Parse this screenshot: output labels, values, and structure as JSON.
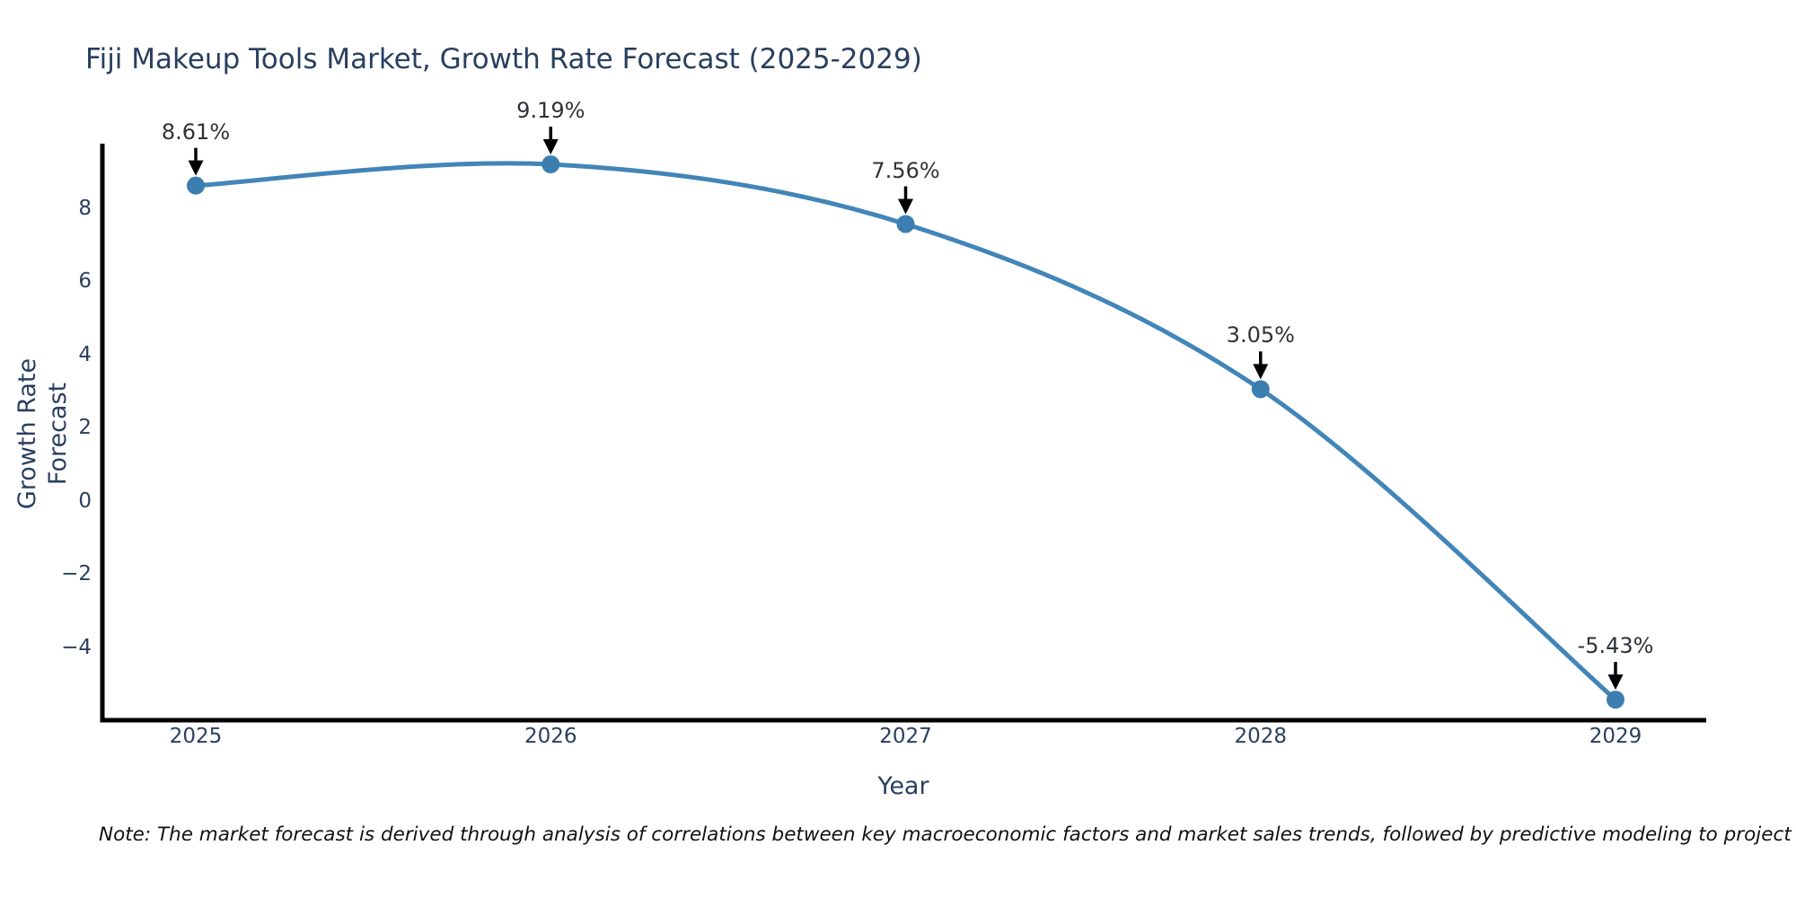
{
  "page": {
    "note": "Note: The market forecast is derived through analysis of correlations between key macroeconomic factors and market sales trends, followed by predictive modeling to project future sales"
  },
  "chart_data": {
    "type": "line",
    "title": "Fiji Makeup Tools Market, Growth Rate Forecast (2025-2029)",
    "xlabel": "Year",
    "ylabel": "Growth Rate Forecast",
    "line_shape": "spline",
    "grid": false,
    "legend_position": "none",
    "categories": [
      "2025",
      "2026",
      "2027",
      "2028",
      "2029"
    ],
    "values": [
      8.61,
      9.19,
      7.56,
      3.05,
      -5.43
    ],
    "point_labels": [
      "8.61%",
      "9.19%",
      "7.56%",
      "3.05%",
      "-5.43%"
    ],
    "ytick_labels": [
      "8",
      "6",
      "4",
      "2",
      "0",
      "−2",
      "−4"
    ],
    "ytick_values": [
      8,
      6,
      4,
      2,
      0,
      -2,
      -4
    ],
    "ylim": [
      -6.0,
      9.8
    ],
    "annotation_style": "black-down-arrow-to-point",
    "colors": {
      "line": "#4285b8",
      "marker": "#3d7eb0",
      "axis": "#000000",
      "text": "#2a3f5f",
      "annotation": "#2e3338",
      "arrow": "#000000",
      "note_text": "#111111",
      "background": "#ffffff"
    }
  }
}
